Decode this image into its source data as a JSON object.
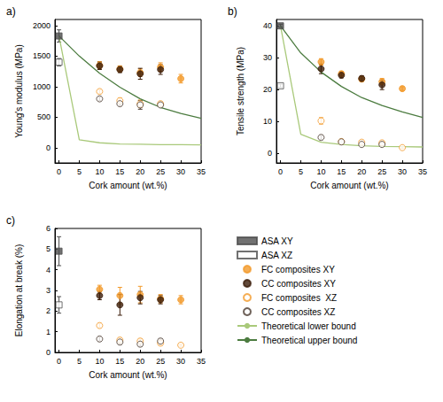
{
  "chart_data": [
    {
      "type": "scatter",
      "title": "a)",
      "x_label": "Cork amount (wt.%)",
      "y_label": "Young's modulus (MPa)",
      "xlim": [
        -1,
        35
      ],
      "xticks": [
        0,
        5,
        10,
        15,
        20,
        25,
        30,
        35
      ],
      "ylim": [
        -250,
        2100
      ],
      "yticks": [
        0,
        500,
        1000,
        1500,
        2000
      ],
      "grid": false,
      "series": [
        {
          "name": "ASA XY",
          "type": "scatter",
          "marker": "square",
          "color": "#4d4d4d",
          "x": [
            0
          ],
          "values": [
            1830
          ],
          "errors": [
            100
          ]
        },
        {
          "name": "ASA XZ",
          "type": "scatter",
          "marker": "open_square",
          "color": "#4d4d4d",
          "x": [
            0
          ],
          "values": [
            1400
          ],
          "errors": [
            60
          ]
        },
        {
          "name": "FC composites XY",
          "type": "scatter",
          "marker": "circle",
          "color": "#f39a2b",
          "x": [
            10,
            15,
            20,
            25,
            30
          ],
          "values": [
            1350,
            1290,
            1230,
            1320,
            1130
          ],
          "errors": [
            60,
            50,
            60,
            70,
            70
          ]
        },
        {
          "name": "CC composites XY",
          "type": "scatter",
          "marker": "circle",
          "color": "#3b1d0a",
          "x": [
            10,
            15,
            20,
            25
          ],
          "values": [
            1340,
            1280,
            1210,
            1280
          ],
          "errors": [
            60,
            50,
            90,
            80
          ]
        },
        {
          "name": "FC composites  XZ",
          "type": "scatter",
          "marker": "open_circle",
          "color": "#f39a2b",
          "x": [
            10,
            15,
            20,
            25
          ],
          "values": [
            920,
            770,
            720,
            720
          ],
          "errors": [
            30,
            40,
            60,
            30
          ]
        },
        {
          "name": "CC composites XZ",
          "type": "scatter",
          "marker": "open_circle",
          "color": "#4a3a30",
          "x": [
            10,
            15,
            20,
            25
          ],
          "values": [
            800,
            720,
            700,
            700
          ],
          "errors": [
            30,
            30,
            70,
            30
          ]
        },
        {
          "name": "Theoretical lower bound",
          "type": "line",
          "line_style": "solid",
          "color": "#a9c97a",
          "x": [
            0,
            5,
            10,
            15,
            20,
            25,
            30,
            35
          ],
          "values": [
            1830,
            130,
            80,
            60,
            55,
            50,
            48,
            45
          ]
        },
        {
          "name": "Theoretical upper bound",
          "type": "line",
          "line_style": "solid",
          "color": "#4c7c40",
          "x": [
            0,
            5,
            10,
            15,
            20,
            25,
            30,
            35
          ],
          "values": [
            1830,
            1500,
            1220,
            990,
            800,
            660,
            560,
            480
          ]
        }
      ]
    },
    {
      "type": "scatter",
      "title": "b)",
      "x_label": "Cork amount (wt.%)",
      "y_label": "Tensile strength (MPa)",
      "xlim": [
        -1,
        35
      ],
      "xticks": [
        0,
        5,
        10,
        15,
        20,
        25,
        30,
        35
      ],
      "ylim": [
        -3,
        42
      ],
      "yticks": [
        0,
        10,
        20,
        30,
        40
      ],
      "grid": false,
      "series": [
        {
          "name": "ASA XY",
          "type": "scatter",
          "marker": "square",
          "color": "#4d4d4d",
          "x": [
            0
          ],
          "values": [
            40
          ],
          "errors": [
            0.5
          ]
        },
        {
          "name": "ASA XZ",
          "type": "scatter",
          "marker": "open_square",
          "color": "#4d4d4d",
          "x": [
            0
          ],
          "values": [
            21.2
          ],
          "errors": [
            0.5
          ]
        },
        {
          "name": "FC composites XY",
          "type": "scatter",
          "marker": "circle",
          "color": "#f39a2b",
          "x": [
            10,
            15,
            20,
            25,
            30
          ],
          "values": [
            28.7,
            25,
            23.3,
            22.5,
            20.3
          ],
          "errors": [
            1,
            0.7,
            0.8,
            1,
            0.6
          ]
        },
        {
          "name": "CC composites XY",
          "type": "scatter",
          "marker": "circle",
          "color": "#3b1d0a",
          "x": [
            10,
            15,
            20,
            25
          ],
          "values": [
            26.5,
            24.5,
            23.5,
            21.5
          ],
          "errors": [
            1.5,
            0.8,
            0.8,
            1.5
          ]
        },
        {
          "name": "FC composites  XZ",
          "type": "scatter",
          "marker": "open_circle",
          "color": "#f39a2b",
          "x": [
            10,
            15,
            20,
            25,
            30
          ],
          "values": [
            10.2,
            3.7,
            3.5,
            3.3,
            1.8
          ],
          "errors": [
            1,
            0.4,
            0.5,
            0.5,
            0.3
          ]
        },
        {
          "name": "CC composites XZ",
          "type": "scatter",
          "marker": "open_circle",
          "color": "#4a3a30",
          "x": [
            10,
            15,
            20,
            25
          ],
          "values": [
            5,
            3.6,
            2.8,
            2.8
          ],
          "errors": [
            0.6,
            0.4,
            0.4,
            0.4
          ]
        },
        {
          "name": "Theoretical lower bound",
          "type": "line",
          "line_style": "solid",
          "color": "#a9c97a",
          "x": [
            0,
            5,
            10,
            15,
            20,
            25,
            30,
            35
          ],
          "values": [
            40,
            6,
            3.5,
            2.8,
            2.4,
            2.2,
            2.1,
            2
          ]
        },
        {
          "name": "Theoretical upper bound",
          "type": "line",
          "line_style": "solid",
          "color": "#4c7c40",
          "x": [
            0,
            5,
            10,
            15,
            20,
            25,
            30,
            35
          ],
          "values": [
            40,
            31.5,
            25.5,
            21,
            17.5,
            15,
            13,
            11.3
          ]
        }
      ]
    },
    {
      "type": "scatter",
      "title": "c)",
      "x_label": "Cork amount (wt.%)",
      "y_label": "Elongation at break (%)",
      "xlim": [
        -1,
        35
      ],
      "xticks": [
        0,
        5,
        10,
        15,
        20,
        25,
        30,
        35
      ],
      "ylim": [
        0,
        6
      ],
      "yticks": [
        0,
        1,
        2,
        3,
        4,
        5,
        6
      ],
      "grid": false,
      "legend": "lower right",
      "series": [
        {
          "name": "ASA XY",
          "type": "scatter",
          "marker": "square",
          "color": "#4d4d4d",
          "x": [
            0
          ],
          "values": [
            4.9
          ],
          "errors": [
            0.7
          ]
        },
        {
          "name": "ASA XZ",
          "type": "scatter",
          "marker": "open_square",
          "color": "#4d4d4d",
          "x": [
            0
          ],
          "values": [
            2.3
          ],
          "errors": [
            0.4
          ]
        },
        {
          "name": "FC composites XY",
          "type": "scatter",
          "marker": "circle",
          "color": "#f39a2b",
          "x": [
            10,
            15,
            20,
            25,
            30
          ],
          "values": [
            3.05,
            2.75,
            2.8,
            2.6,
            2.55
          ],
          "errors": [
            0.2,
            0.4,
            0.4,
            0.2,
            0.2
          ]
        },
        {
          "name": "CC composites XY",
          "type": "scatter",
          "marker": "circle",
          "color": "#3b1d0a",
          "x": [
            10,
            15,
            20,
            25
          ],
          "values": [
            2.75,
            2.3,
            2.65,
            2.55
          ],
          "errors": [
            0.2,
            0.5,
            0.3,
            0.2
          ]
        },
        {
          "name": "FC composites  XZ",
          "type": "scatter",
          "marker": "open_circle",
          "color": "#f39a2b",
          "x": [
            10,
            15,
            20,
            25,
            30
          ],
          "values": [
            1.3,
            0.6,
            0.55,
            0.45,
            0.35
          ],
          "errors": [
            0.1,
            0.1,
            0.1,
            0.1,
            0.05
          ]
        },
        {
          "name": "CC composites XZ",
          "type": "scatter",
          "marker": "open_circle",
          "color": "#4a3a30",
          "x": [
            10,
            15,
            20,
            25
          ],
          "values": [
            0.65,
            0.5,
            0.4,
            0.55
          ],
          "errors": [
            0.1,
            0.1,
            0.1,
            0.1
          ]
        }
      ]
    }
  ]
}
